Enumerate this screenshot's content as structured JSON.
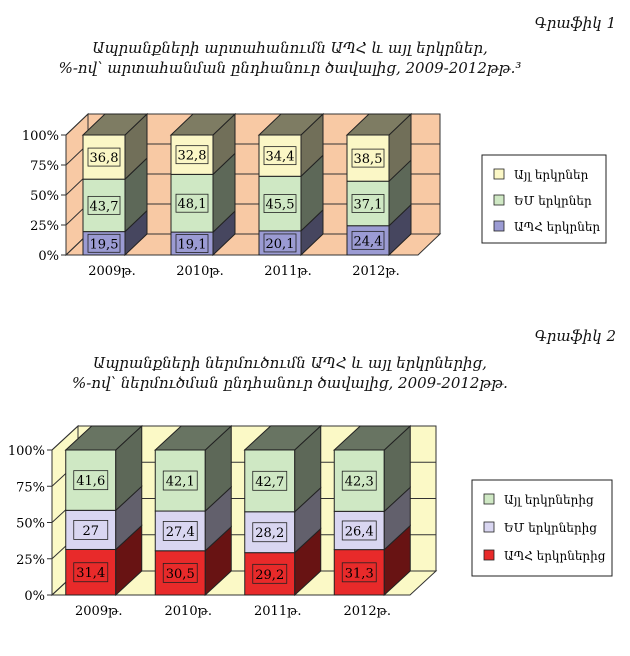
{
  "page": {
    "charts": [
      {
        "figure_label": "Գրաֆիկ 1",
        "title_lines": [
          "Ապրանքների արտահանումն ԱՊՀ և այլ երկրներ,",
          "%-ով՝ արտահանման ընդհանուր ծավալից, 2009-2012թթ.³"
        ]
      },
      {
        "figure_label": "Գրաֆիկ 2",
        "title_lines": [
          "Ապրանքների ներմուծումն ԱՊՀ և այլ երկրներից,",
          "%-ով՝ ներմուծման ընդհանուր ծավալից, 2009-2012թթ."
        ]
      }
    ]
  },
  "chart_data": [
    {
      "type": "bar",
      "stacked": true,
      "three_d": true,
      "categories": [
        "2009թ.",
        "2010թ.",
        "2011թ.",
        "2012թ."
      ],
      "yticks": [
        "0%",
        "25%",
        "50%",
        "75%",
        "100%"
      ],
      "ylim": [
        0,
        100
      ],
      "legend_position": "right",
      "wall_color": "#f8c9a4",
      "series": [
        {
          "name": "ԱՊՀ երկրներ",
          "values": [
            19.5,
            19.1,
            20.1,
            24.4
          ],
          "labels": [
            "19,5",
            "19,1",
            "20,1",
            "24,4"
          ],
          "color": "#9b9bd3"
        },
        {
          "name": "ԵՄ երկրներ",
          "values": [
            43.7,
            48.1,
            45.5,
            37.1
          ],
          "labels": [
            "43,7",
            "48,1",
            "45,5",
            "37,1"
          ],
          "color": "#cfe8c4"
        },
        {
          "name": "Այլ երկրներ",
          "values": [
            36.8,
            32.8,
            34.4,
            38.5
          ],
          "labels": [
            "36,8",
            "32,8",
            "34,4",
            "38,5"
          ],
          "color": "#fbf7c6"
        }
      ]
    },
    {
      "type": "bar",
      "stacked": true,
      "three_d": true,
      "categories": [
        "2009թ.",
        "2010թ.",
        "2011թ.",
        "2012թ."
      ],
      "yticks": [
        "0%",
        "25%",
        "50%",
        "75%",
        "100%"
      ],
      "ylim": [
        0,
        100
      ],
      "legend_position": "right",
      "wall_color": "#fbf9c6",
      "series": [
        {
          "name": "ԱՊՀ երկրներից",
          "values": [
            31.4,
            30.5,
            29.2,
            31.3
          ],
          "labels": [
            "31,4",
            "30,5",
            "29,2",
            "31,3"
          ],
          "color": "#e82a2a"
        },
        {
          "name": "ԵՄ երկրներից",
          "values": [
            27,
            27.4,
            28.2,
            26.4
          ],
          "labels": [
            "27",
            "27,4",
            "28,2",
            "26,4"
          ],
          "color": "#d9d6f1"
        },
        {
          "name": "Այլ երկրներից",
          "values": [
            41.6,
            42.1,
            42.7,
            42.3
          ],
          "labels": [
            "41,6",
            "42,1",
            "42,7",
            "42,3"
          ],
          "color": "#cfe8c4"
        }
      ]
    }
  ]
}
